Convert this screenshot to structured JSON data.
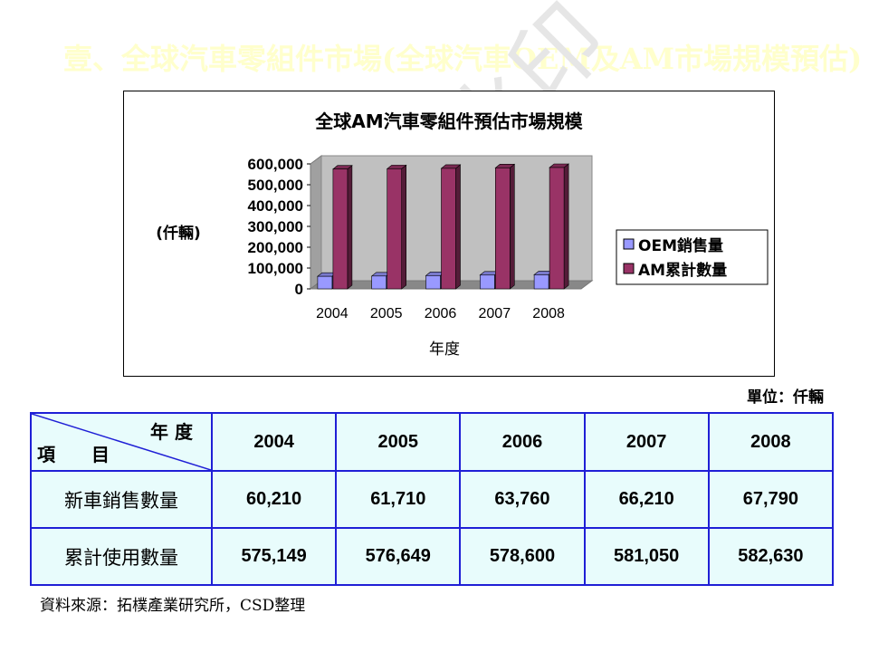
{
  "slide": {
    "title": "壹、全球汽車零組件市場(全球汽車OEM及AM市場規模預估)",
    "watermark": "非会员水印",
    "unit_note": "單位：仟輛",
    "source": "資料來源：拓樸產業研究所，CSD整理"
  },
  "chart_data": {
    "type": "bar",
    "title": "全球AM汽車零組件預估市場規模",
    "xlabel": "年度",
    "ylabel": "(仟輛)",
    "categories": [
      "2004",
      "2005",
      "2006",
      "2007",
      "2008"
    ],
    "ylim": [
      0,
      600000
    ],
    "yticks": [
      "0",
      "100,000",
      "200,000",
      "300,000",
      "400,000",
      "500,000",
      "600,000"
    ],
    "series": [
      {
        "name": "OEM銷售量",
        "values": [
          60210,
          61710,
          63760,
          66210,
          67790
        ],
        "color": "#9999ff"
      },
      {
        "name": "AM累計數量",
        "values": [
          575149,
          576649,
          578600,
          581050,
          582630
        ],
        "color": "#993366"
      }
    ],
    "grid": false,
    "legend": "right"
  },
  "table": {
    "corner_top": "年 度",
    "corner_bottom": "項　　目",
    "years": [
      "2004",
      "2005",
      "2006",
      "2007",
      "2008"
    ],
    "rows": [
      {
        "label": "新車銷售數量",
        "values": [
          "60,210",
          "61,710",
          "63,760",
          "66,210",
          "67,790"
        ]
      },
      {
        "label": "累計使用數量",
        "values": [
          "575,149",
          "576,649",
          "578,600",
          "581,050",
          "582,630"
        ]
      }
    ]
  }
}
